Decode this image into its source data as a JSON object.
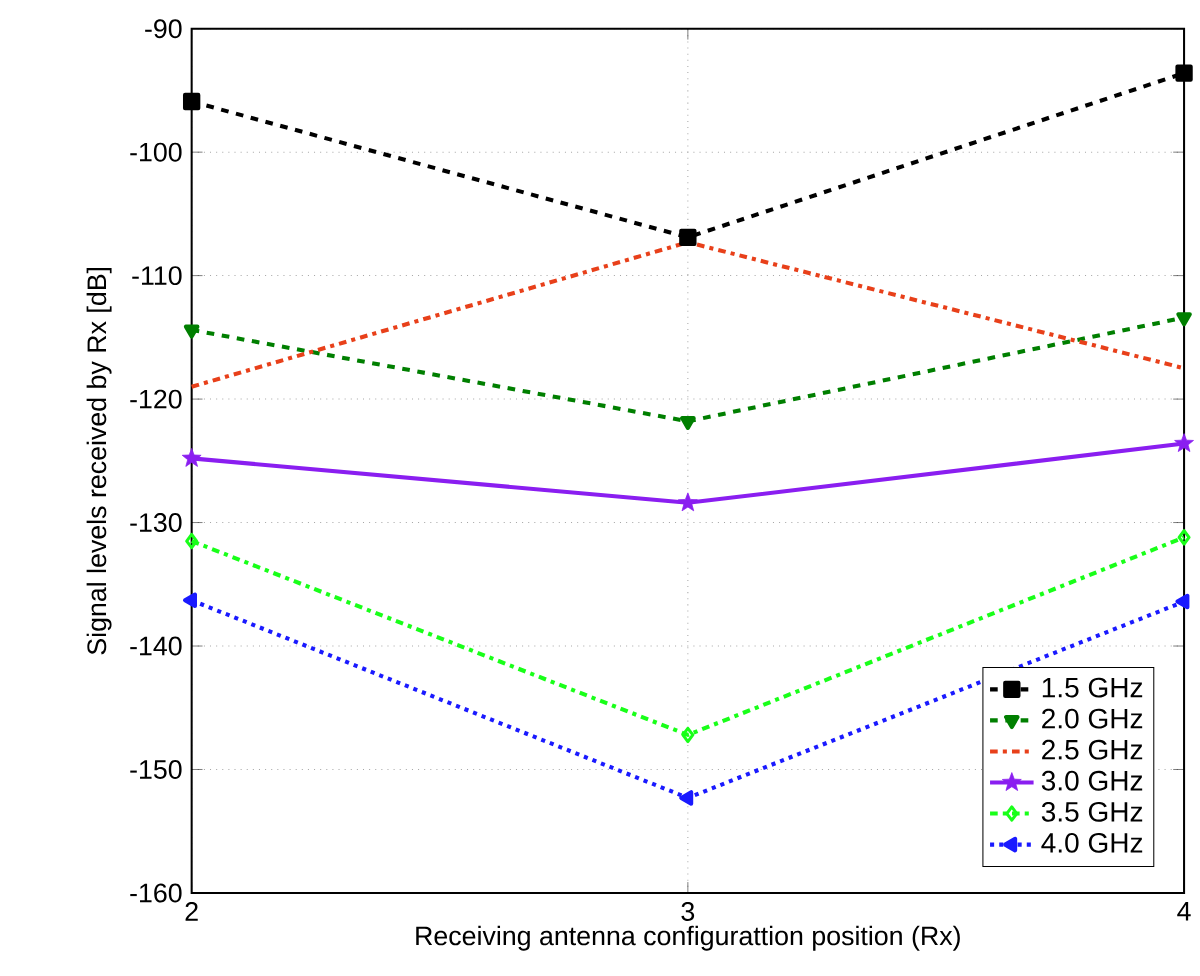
{
  "chart_data": {
    "type": "line",
    "xlabel": "Receiving antenna configurattion position (Rx)",
    "ylabel": "Signal levels received by  Rx [dB]",
    "x": [
      2,
      3,
      4
    ],
    "xlim": [
      2,
      4
    ],
    "xticks": [
      2,
      3,
      4
    ],
    "ylim": [
      -160,
      -90
    ],
    "yticks": [
      -160,
      -150,
      -140,
      -130,
      -120,
      -110,
      -100,
      -90
    ],
    "grid": true,
    "legend": "bottom right",
    "series": [
      {
        "name": "1.5 GHz",
        "color": "#000000",
        "line_style": "dashed",
        "marker": "square",
        "values": [
          -95.9,
          -106.9,
          -93.6
        ]
      },
      {
        "name": "2.0 GHz",
        "color": "#007f00",
        "line_style": "dashed",
        "marker": "triangle_down",
        "values": [
          -114.4,
          -121.8,
          -113.4
        ]
      },
      {
        "name": "2.5 GHz",
        "color": "#e8401a",
        "line_style": "dashdot",
        "marker": "none",
        "values": [
          -119.0,
          -107.3,
          -117.5
        ]
      },
      {
        "name": "3.0 GHz",
        "color": "#8a1ef0",
        "line_style": "solid",
        "marker": "star",
        "values": [
          -124.8,
          -128.4,
          -123.6
        ]
      },
      {
        "name": "3.5  GHz",
        "color": "#19ff19",
        "line_style": "dashdot",
        "marker": "diamond",
        "values": [
          -131.5,
          -147.2,
          -131.2
        ]
      },
      {
        "name": "4.0 GHz",
        "color": "#1a1aff",
        "line_style": "dotted",
        "marker": "triangle_left",
        "values": [
          -136.3,
          -152.3,
          -136.4
        ]
      }
    ]
  }
}
